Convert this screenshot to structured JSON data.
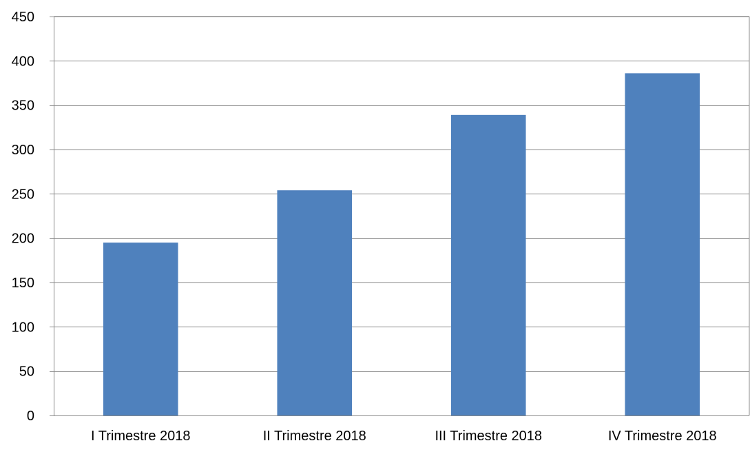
{
  "chart_data": {
    "type": "bar",
    "title": "",
    "xlabel": "",
    "ylabel": "",
    "categories": [
      "I Trimestre 2018",
      "II Trimestre 2018",
      "III Trimestre 2018",
      "IV Trimestre 2018"
    ],
    "values": [
      195,
      254,
      339,
      386
    ],
    "ylim": [
      0,
      450
    ],
    "yticks": [
      0,
      50,
      100,
      150,
      200,
      250,
      300,
      350,
      400,
      450
    ],
    "ytick_labels": [
      "0",
      "50",
      "100",
      "150",
      "200",
      "250",
      "300",
      "350",
      "400",
      "450"
    ],
    "grid": true,
    "legend": "none",
    "colors": {
      "bar": "#4F81BD",
      "grid": "#868686",
      "axis": "#868686",
      "text": "#000000"
    }
  }
}
